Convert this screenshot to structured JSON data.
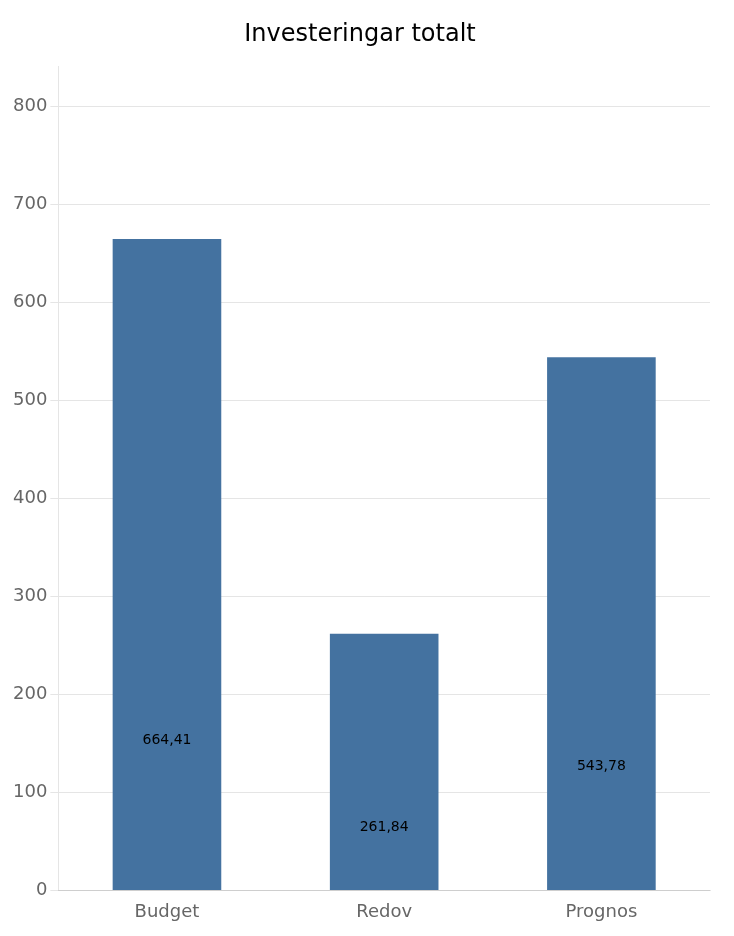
{
  "chart_data": {
    "type": "bar",
    "title": "Investeringar totalt",
    "categories": [
      "Budget",
      "Redov",
      "Prognos"
    ],
    "values": [
      664.41,
      261.84,
      543.78
    ],
    "value_labels": [
      "664,41",
      "261,84",
      "543,78"
    ],
    "data_labels": true,
    "color": "#4472A0",
    "ylim": [
      0,
      840
    ],
    "yticks": [
      0,
      100,
      200,
      300,
      400,
      500,
      600,
      700,
      800
    ],
    "grid": true
  }
}
